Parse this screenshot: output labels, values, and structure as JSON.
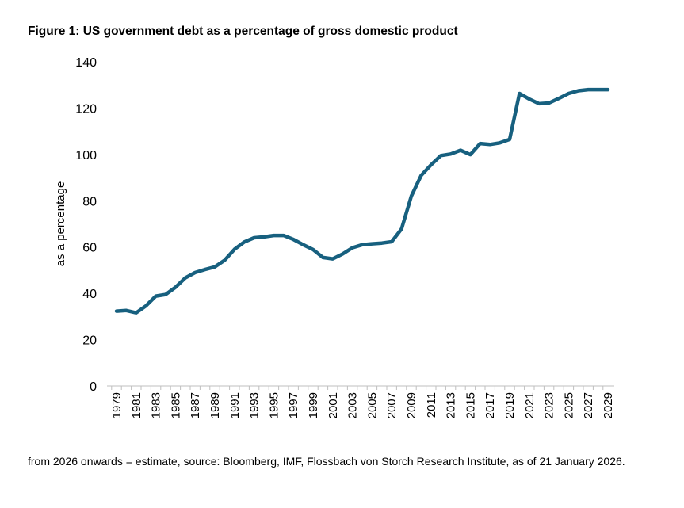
{
  "chart_data": {
    "type": "line",
    "title": "Figure 1: US government debt as a percentage of gross domestic product",
    "ylabel": "as a percentage",
    "xlabel": "",
    "ylim": [
      0,
      140
    ],
    "yticks": [
      0,
      20,
      40,
      60,
      80,
      100,
      120,
      140
    ],
    "xtick_labels": [
      "1979",
      "1981",
      "1983",
      "1985",
      "1987",
      "1989",
      "1991",
      "1993",
      "1995",
      "1997",
      "1999",
      "2001",
      "2003",
      "2005",
      "2007",
      "2009",
      "2011",
      "2013",
      "2015",
      "2017",
      "2019",
      "2021",
      "2023",
      "2025",
      "2027",
      "2029"
    ],
    "grid": false,
    "color": "#17607F",
    "x": [
      1979,
      1980,
      1981,
      1982,
      1983,
      1984,
      1985,
      1986,
      1987,
      1988,
      1989,
      1990,
      1991,
      1992,
      1993,
      1994,
      1995,
      1996,
      1997,
      1998,
      1999,
      2000,
      2001,
      2002,
      2003,
      2004,
      2005,
      2006,
      2007,
      2008,
      2009,
      2010,
      2011,
      2012,
      2013,
      2014,
      2015,
      2016,
      2017,
      2018,
      2019,
      2020,
      2021,
      2022,
      2023,
      2024,
      2025,
      2026,
      2027,
      2028,
      2029
    ],
    "values": [
      32.3,
      32.6,
      31.6,
      34.6,
      38.8,
      39.5,
      42.6,
      46.7,
      49.0,
      50.3,
      51.4,
      54.3,
      59.0,
      62.2,
      64.0,
      64.4,
      65.0,
      65.0,
      63.3,
      61.0,
      58.9,
      55.5,
      54.9,
      57.0,
      59.7,
      61.0,
      61.4,
      61.7,
      62.3,
      67.8,
      82.0,
      90.9,
      95.5,
      99.5,
      100.2,
      101.8,
      99.9,
      104.7,
      104.3,
      105.0,
      106.5,
      126.3,
      123.9,
      121.9,
      122.2,
      124.2,
      126.3,
      127.5,
      128.0,
      128.0,
      128.0
    ],
    "footnote": "from 2026 onwards = estimate, source: Bloomberg, IMF, Flossbach von Storch Research Institute, as of 21 January 2026."
  }
}
